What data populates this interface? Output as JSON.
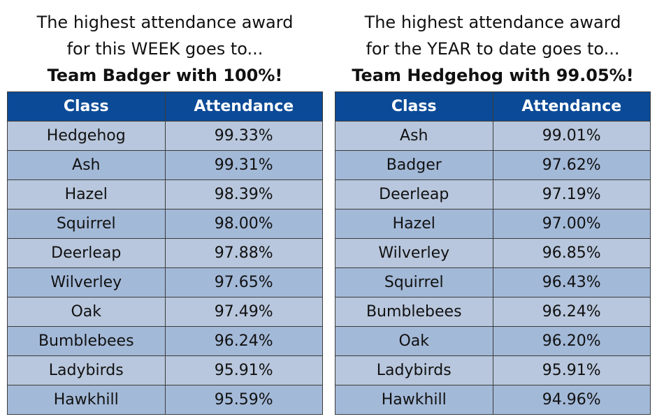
{
  "week": {
    "heading_line1": "The highest attendance award",
    "heading_line2": "for this WEEK goes to...",
    "winner": "Team Badger with 100%!",
    "columns": [
      "Class",
      "Attendance"
    ],
    "rows": [
      {
        "class": "Hedgehog",
        "attendance": "99.33%"
      },
      {
        "class": "Ash",
        "attendance": "99.31%"
      },
      {
        "class": "Hazel",
        "attendance": "98.39%"
      },
      {
        "class": "Squirrel",
        "attendance": "98.00%"
      },
      {
        "class": "Deerleap",
        "attendance": "97.88%"
      },
      {
        "class": "Wilverley",
        "attendance": "97.65%"
      },
      {
        "class": "Oak",
        "attendance": "97.49%"
      },
      {
        "class": "Bumblebees",
        "attendance": "96.24%"
      },
      {
        "class": "Ladybirds",
        "attendance": "95.91%"
      },
      {
        "class": "Hawkhill",
        "attendance": "95.59%"
      }
    ]
  },
  "year": {
    "heading_line1": "The highest attendance award",
    "heading_line2": "for the YEAR to date goes to...",
    "winner": "Team Hedgehog with 99.05%!",
    "columns": [
      "Class",
      "Attendance"
    ],
    "rows": [
      {
        "class": "Ash",
        "attendance": "99.01%"
      },
      {
        "class": "Badger",
        "attendance": "97.62%"
      },
      {
        "class": "Deerleap",
        "attendance": "97.19%"
      },
      {
        "class": "Hazel",
        "attendance": "97.00%"
      },
      {
        "class": "Wilverley",
        "attendance": "96.85%"
      },
      {
        "class": "Squirrel",
        "attendance": "96.43%"
      },
      {
        "class": "Bumblebees",
        "attendance": "96.24%"
      },
      {
        "class": "Oak",
        "attendance": "96.20%"
      },
      {
        "class": "Ladybirds",
        "attendance": "95.91%"
      },
      {
        "class": "Hawkhill",
        "attendance": "94.96%"
      }
    ]
  },
  "colors": {
    "header_bg": "#0b4a96",
    "header_text": "#ffffff",
    "row_light": "#b8c7dd",
    "row_dark": "#a3b9d8"
  }
}
